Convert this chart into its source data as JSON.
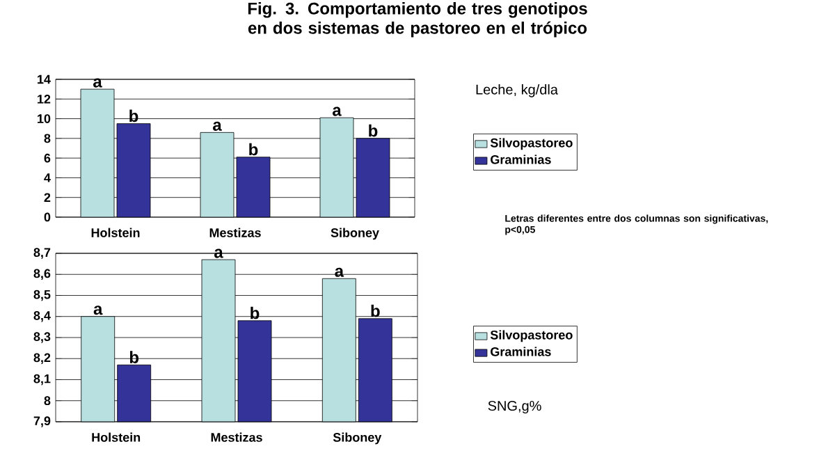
{
  "chart_data": [
    {
      "type": "bar",
      "title": "Fig. 3. Comportamiento de tres genotipos en dos sistemas de pastoreo en el trópico",
      "ylabel": "Leche, kg/dla",
      "annotations": [
        "Letras diferentes entre dos columnas son significativas, p<0,05"
      ],
      "categories": [
        "Holstein",
        "Mestizas",
        "Siboney"
      ],
      "series": [
        {
          "name": "Silvopastoreo",
          "color": "#b8e0e0",
          "values": [
            13.0,
            8.6,
            10.1
          ],
          "value_labels": [
            "a",
            "a",
            "a"
          ]
        },
        {
          "name": "Graminias",
          "color": "#333399",
          "values": [
            9.5,
            6.1,
            8.0
          ],
          "value_labels": [
            "b",
            "b",
            "b"
          ]
        }
      ],
      "ylim": [
        0,
        14
      ],
      "yticks": [
        0,
        2,
        4,
        6,
        8,
        10,
        12,
        14
      ],
      "grid": "y",
      "legend": "right"
    },
    {
      "type": "bar",
      "ylabel": "SNG,g%",
      "categories": [
        "Holstein",
        "Mestizas",
        "Siboney"
      ],
      "series": [
        {
          "name": "Silvopastoreo",
          "color": "#b8e0e0",
          "values": [
            8.4,
            8.67,
            8.58
          ],
          "value_labels": [
            "a",
            "a",
            "a"
          ]
        },
        {
          "name": "Graminias",
          "color": "#333399",
          "values": [
            8.17,
            8.38,
            8.39
          ],
          "value_labels": [
            "b",
            "b",
            "b"
          ]
        }
      ],
      "ylim": [
        7.9,
        8.7
      ],
      "yticks": [
        {
          "value": 7.9,
          "label": "7,9"
        },
        {
          "value": 8.0,
          "label": "8"
        },
        {
          "value": 8.1,
          "label": "8,1"
        },
        {
          "value": 8.2,
          "label": "8,2"
        },
        {
          "value": 8.3,
          "label": "8,3"
        },
        {
          "value": 8.4,
          "label": "8,4"
        },
        {
          "value": 8.5,
          "label": "8,5"
        },
        {
          "value": 8.6,
          "label": "8,6"
        },
        {
          "value": 8.7,
          "label": "8,7"
        }
      ],
      "grid": "y",
      "legend": "right"
    }
  ]
}
